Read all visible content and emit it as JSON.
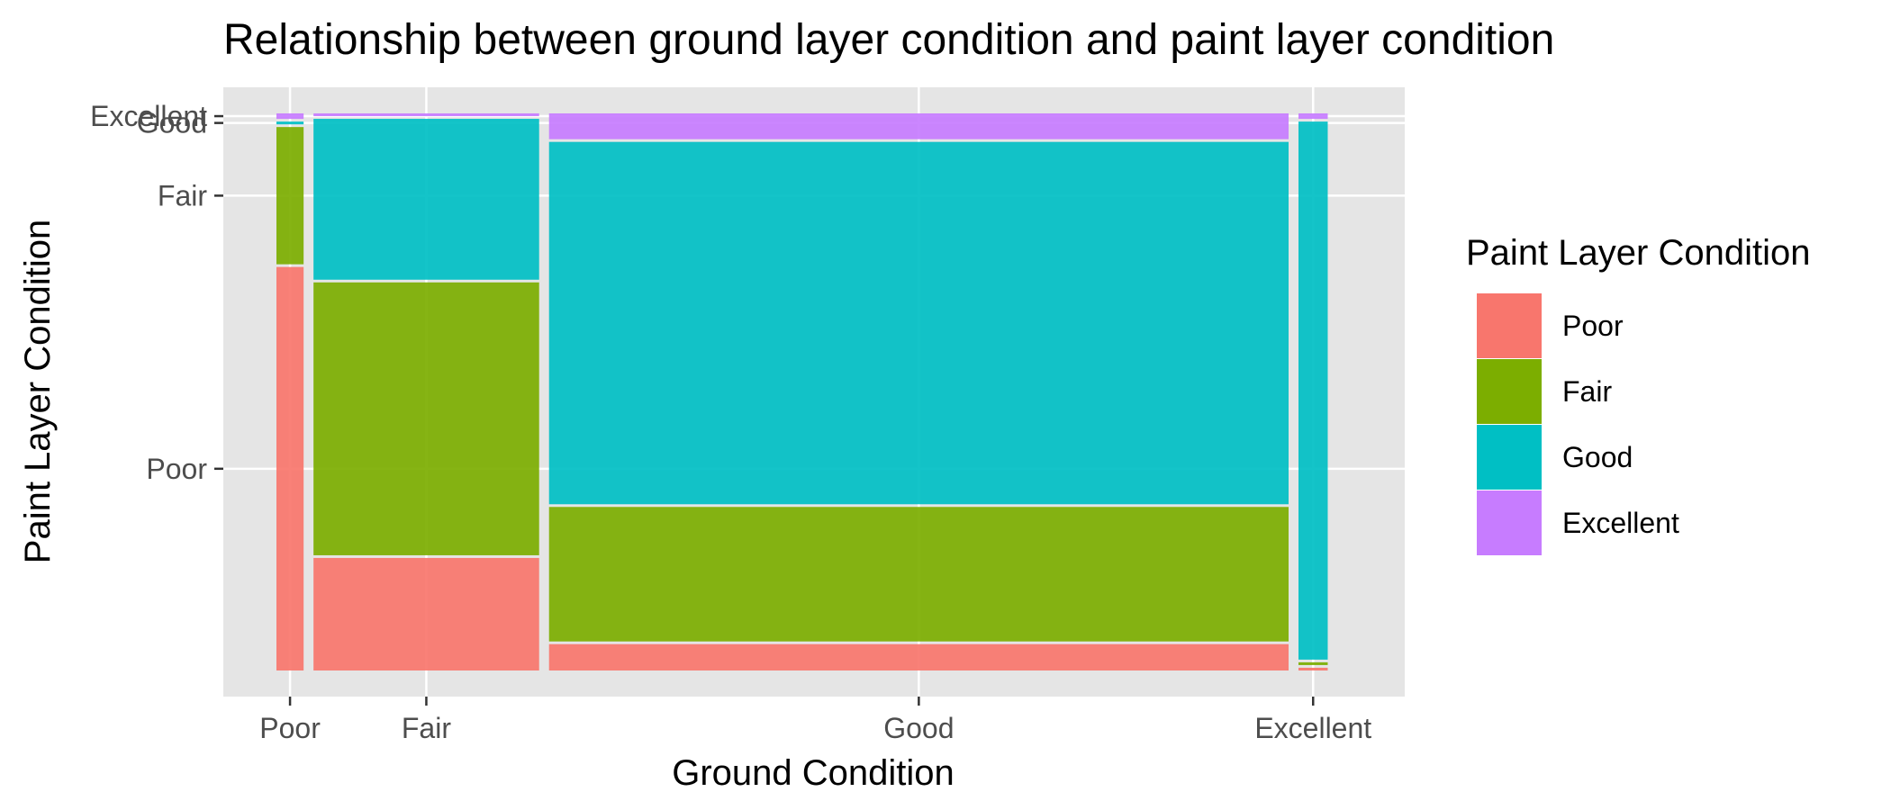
{
  "chart_data": {
    "type": "mosaic",
    "title": "Relationship between ground layer condition and paint layer condition",
    "xlabel": "Ground Condition",
    "ylabel": "Paint Layer Condition",
    "categories": [
      "Poor",
      "Fair",
      "Good",
      "Excellent"
    ],
    "x_tick_labels": [
      "Poor",
      "Fair",
      "Good",
      "Excellent"
    ],
    "y_tick_labels": [
      "Poor",
      "Fair",
      "Good",
      "Excellent"
    ],
    "legend": {
      "title": "Paint Layer Condition",
      "placement": "right",
      "entries": [
        "Poor",
        "Fair",
        "Good",
        "Excellent"
      ]
    },
    "colors": {
      "Poor": "#F8766D",
      "Fair": "#7CAE00",
      "Good": "#00BFC4",
      "Excellent": "#C77CFF",
      "panel": "#E5E5E5",
      "grid": "#FFFFFF"
    },
    "grid": true,
    "x_proportions": [
      0.026,
      0.216,
      0.708,
      0.028
    ],
    "series": [
      {
        "name": "Poor",
        "values": [
          0.735,
          0.205,
          0.048,
          0.005
        ]
      },
      {
        "name": "Fair",
        "values": [
          0.25,
          0.497,
          0.245,
          0.005
        ]
      },
      {
        "name": "Good",
        "values": [
          0.005,
          0.293,
          0.66,
          0.98
        ]
      },
      {
        "name": "Excellent",
        "values": [
          0.01,
          0.005,
          0.047,
          0.01
        ]
      }
    ]
  }
}
